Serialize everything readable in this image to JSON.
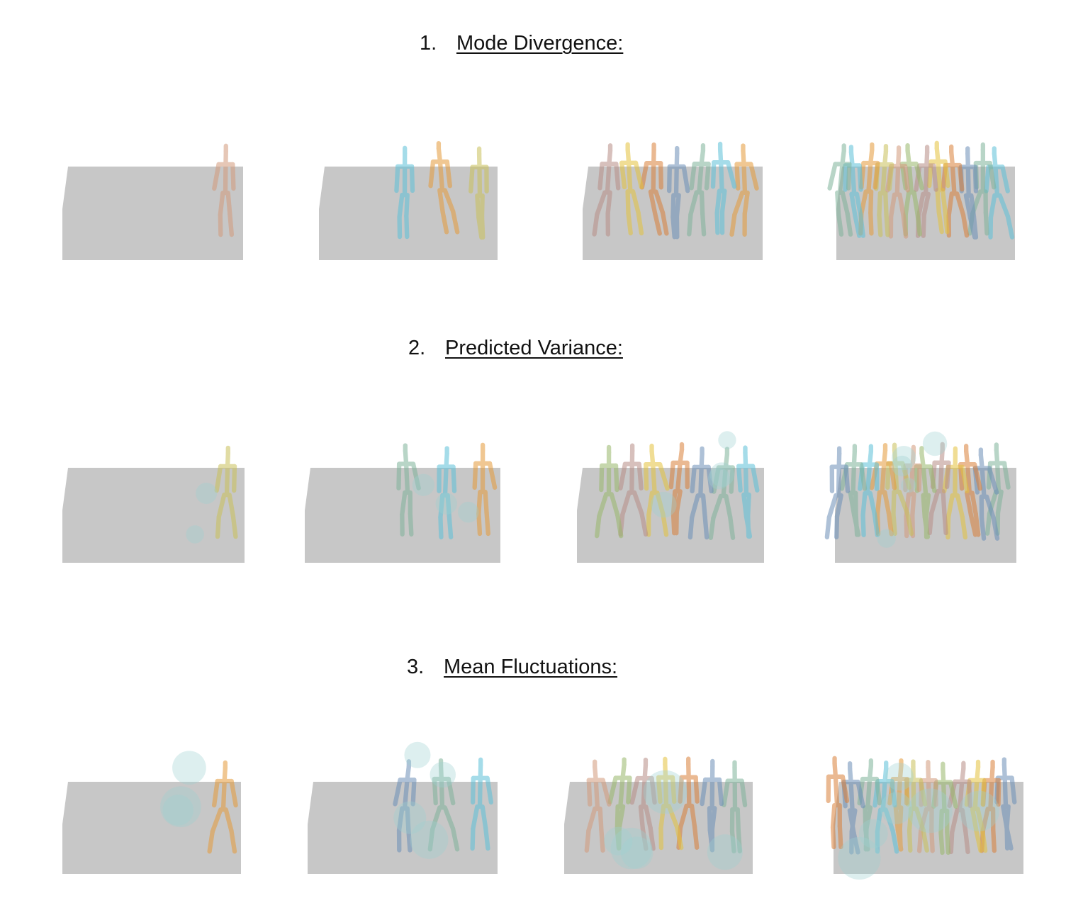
{
  "sections": [
    {
      "number": "1.",
      "label": "Mode Divergence:"
    },
    {
      "number": "2.",
      "label": "Predicted Variance:"
    },
    {
      "number": "3.",
      "label": "Mean Fluctuations:"
    }
  ],
  "colors": {
    "platform": "#bdbdbd",
    "figures": [
      "#d29a7c",
      "#c9c05a",
      "#e59a3a",
      "#5cc0d8",
      "#7fb39a",
      "#6c8fb8",
      "#d9803a",
      "#e4c23e",
      "#b88d86",
      "#98b86b"
    ],
    "uncertainty_blob": "#9fd2d2"
  },
  "panel_icons": [
    "skeleton-figure-icon",
    "uncertainty-sphere-icon",
    "platform-icon"
  ]
}
